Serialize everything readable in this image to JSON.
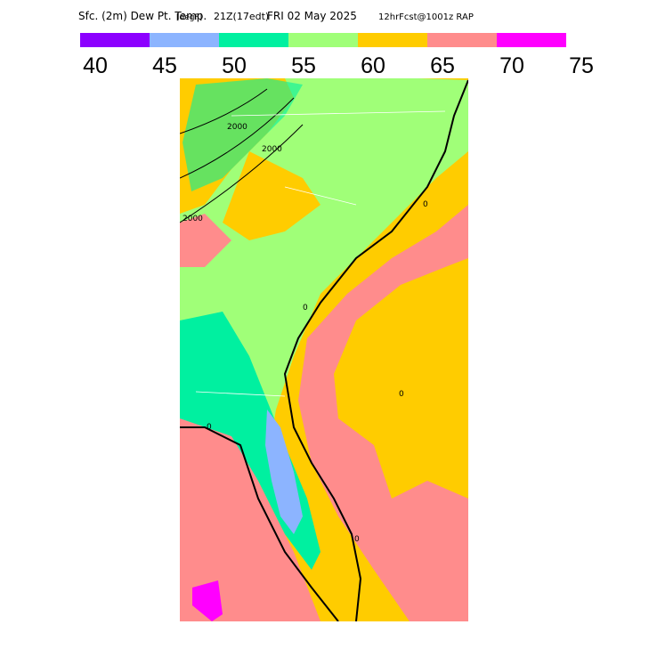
{
  "title": [
    "Sfc. (2m) Dew Pt. Temp.",
    "[degF]",
    "21Z(17edt)",
    "FRI 02 May 2025",
    "12hrFcst@1001z RAP"
  ],
  "colorbar": {
    "colors": [
      "#8c00ff",
      "#8cb4ff",
      "#00f0a0",
      "#a0ff78",
      "#ffcc00",
      "#ff8c8c",
      "#ff00ff"
    ],
    "ticks": [
      40,
      45,
      50,
      55,
      60,
      65,
      70,
      75
    ]
  },
  "contour_labels": [
    "2000",
    "2000",
    "2000",
    "0",
    "0",
    "0",
    "0",
    "0"
  ]
}
